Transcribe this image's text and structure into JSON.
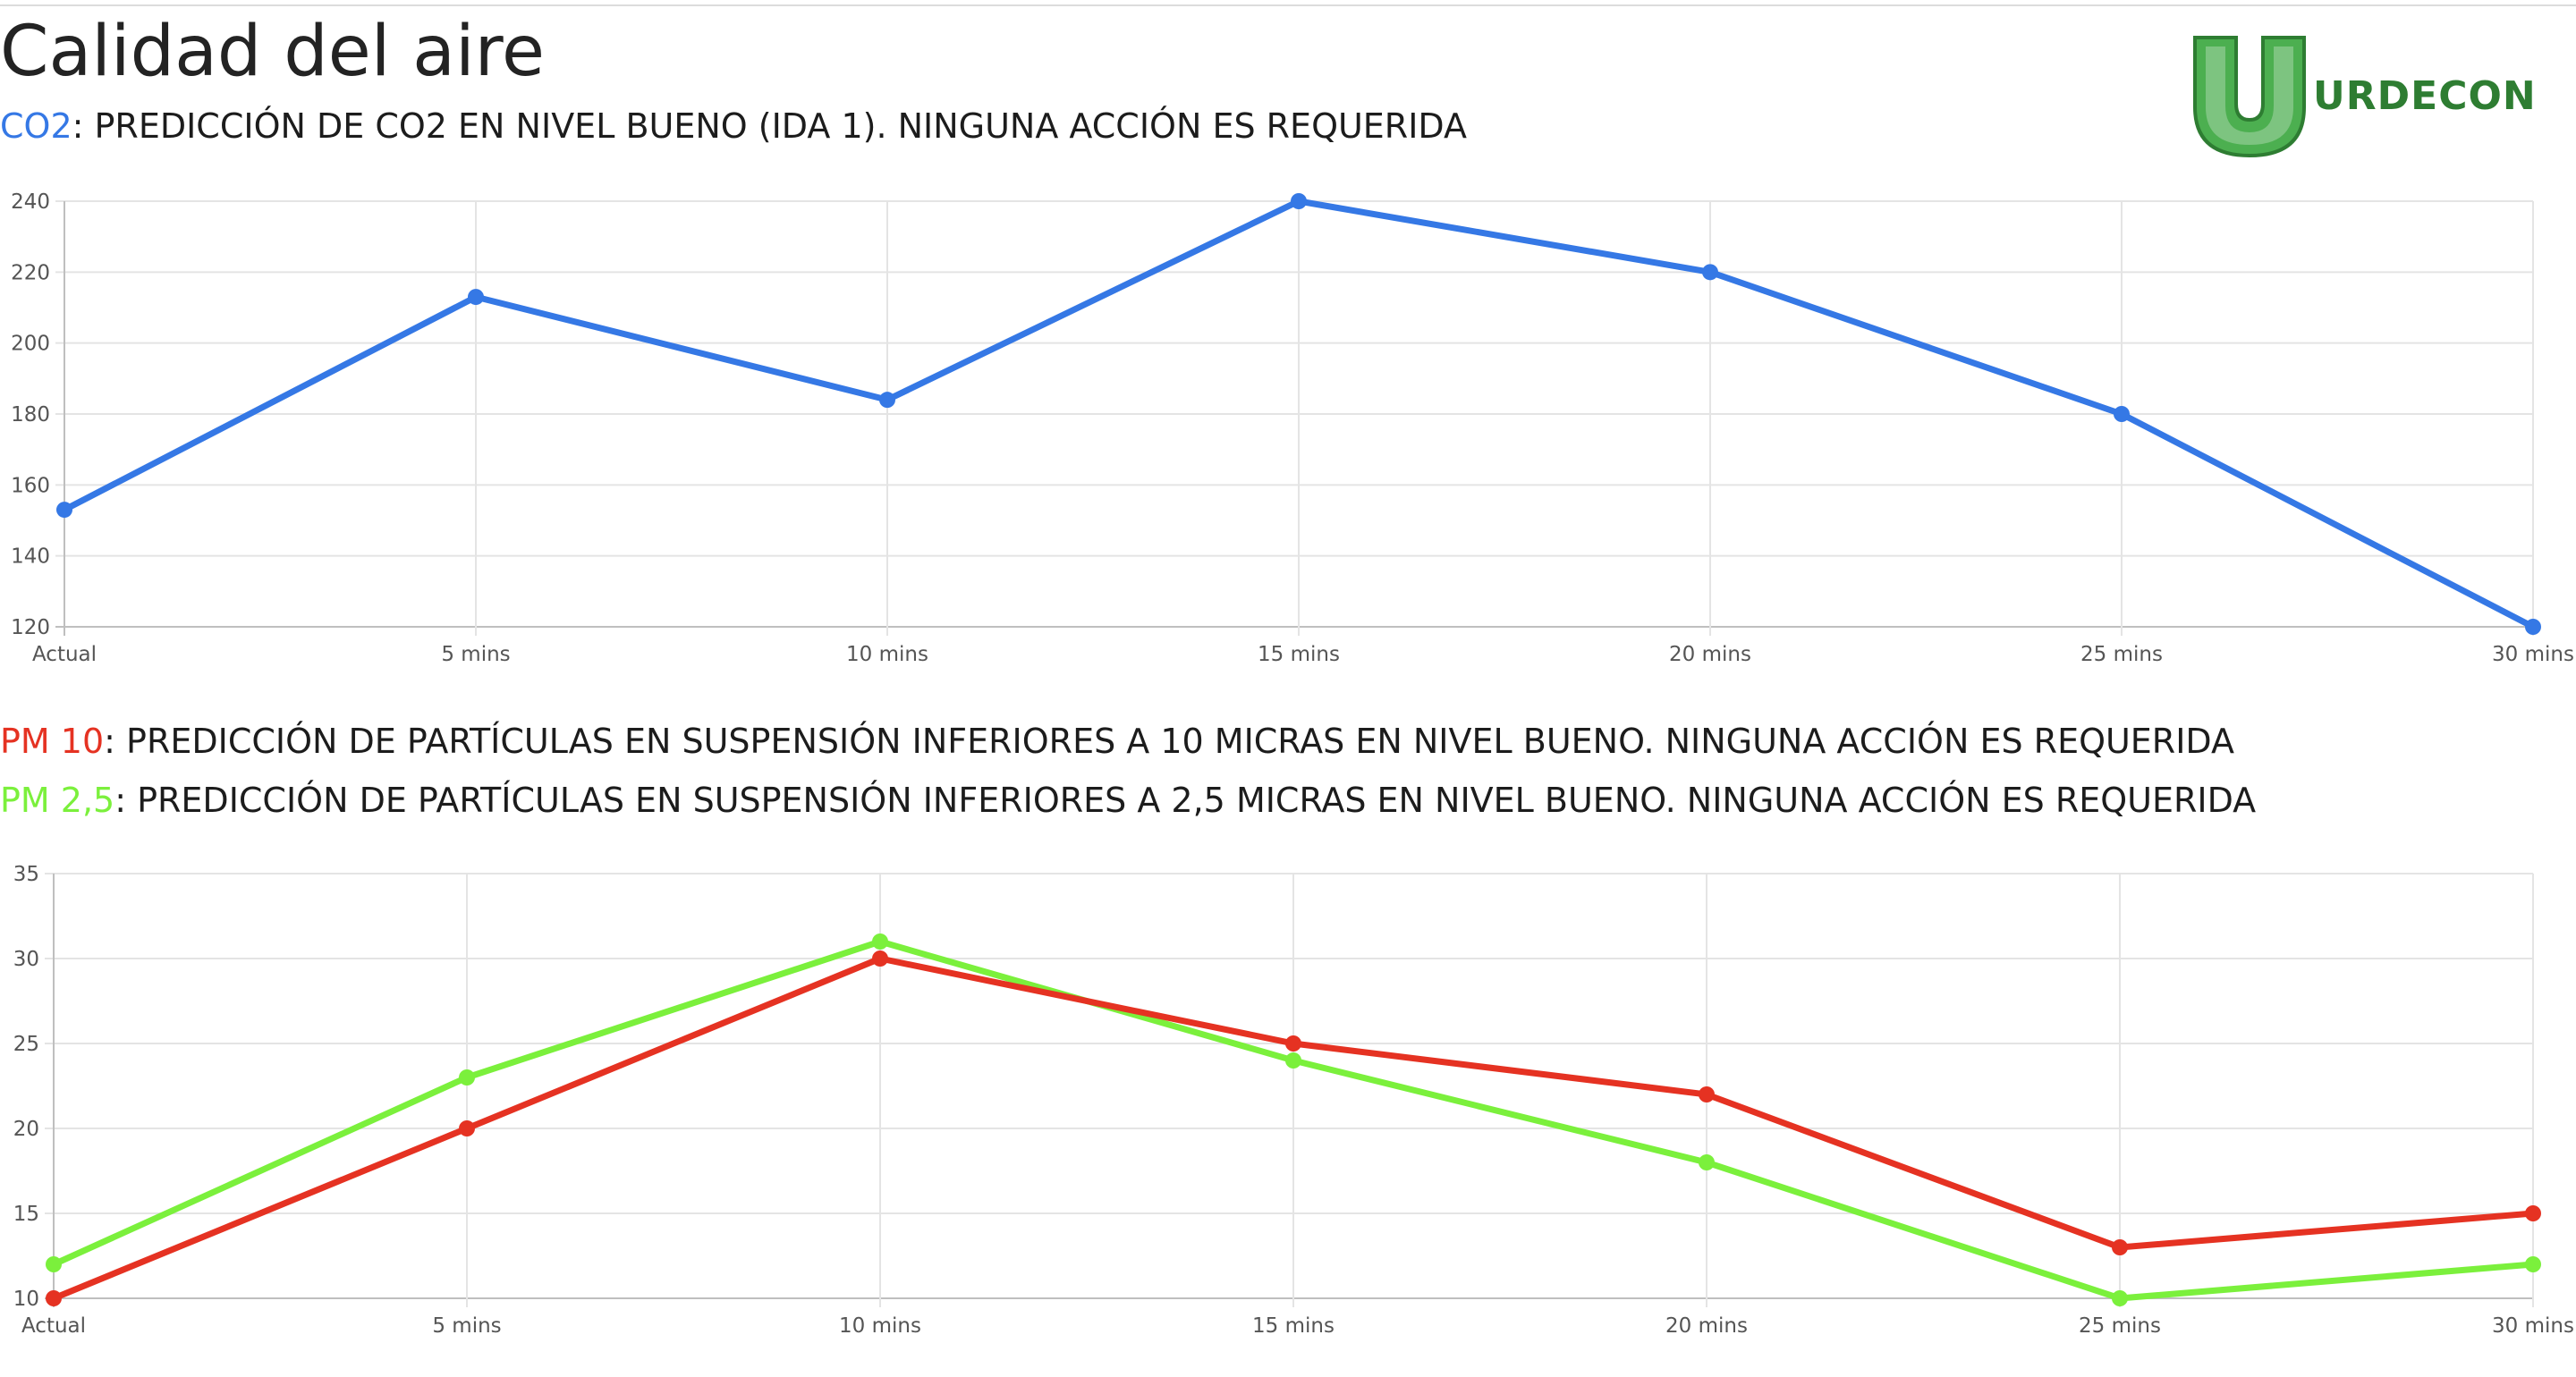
{
  "header": {
    "title": "Calidad del aire",
    "logo_text": "URDECON",
    "logo_colors": {
      "dark": "#2e7d32",
      "mid": "#4caf50",
      "light": "#a5d6a7"
    }
  },
  "co2_status": {
    "label": "CO2",
    "text": ": PREDICCIÓN DE CO2 EN NIVEL BUENO (IDA 1). NINGUNA ACCIÓN ES REQUERIDA",
    "color": "#3578e5"
  },
  "pm10_status": {
    "label": "PM 10",
    "text": ": PREDICCIÓN DE PARTÍCULAS EN SUSPENSIÓN INFERIORES A 10 MICRAS EN NIVEL BUENO. NINGUNA ACCIÓN ES REQUERIDA",
    "color": "#e53222"
  },
  "pm25_status": {
    "label": "PM 2,5",
    "text": ": PREDICCIÓN DE PARTÍCULAS EN SUSPENSIÓN INFERIORES A 2,5 MICRAS EN NIVEL BUENO. NINGUNA ACCIÓN ES REQUERIDA",
    "color": "#7bf03c"
  },
  "chart_data": [
    {
      "type": "line",
      "categories": [
        "Actual",
        "5 mins",
        "10 mins",
        "15 mins",
        "20 mins",
        "25 mins",
        "30 mins"
      ],
      "series": [
        {
          "values": [
            153,
            213,
            184,
            240,
            220,
            180,
            120
          ],
          "color": "#3578e5"
        }
      ],
      "ylim": [
        120,
        240
      ],
      "yticks": [
        120,
        140,
        160,
        180,
        200,
        220,
        240
      ],
      "grid": true,
      "legend": "none"
    },
    {
      "type": "line",
      "categories": [
        "Actual",
        "5 mins",
        "10 mins",
        "15 mins",
        "20 mins",
        "25 mins",
        "30 mins"
      ],
      "series": [
        {
          "values": [
            12,
            23,
            31,
            24,
            18,
            10,
            12
          ],
          "color": "#7bf03c"
        },
        {
          "values": [
            10,
            20,
            30,
            25,
            22,
            13,
            15
          ],
          "color": "#e53222"
        }
      ],
      "ylim": [
        10,
        35
      ],
      "yticks": [
        10,
        15,
        20,
        25,
        30,
        35
      ],
      "grid": true,
      "legend": "none"
    }
  ]
}
